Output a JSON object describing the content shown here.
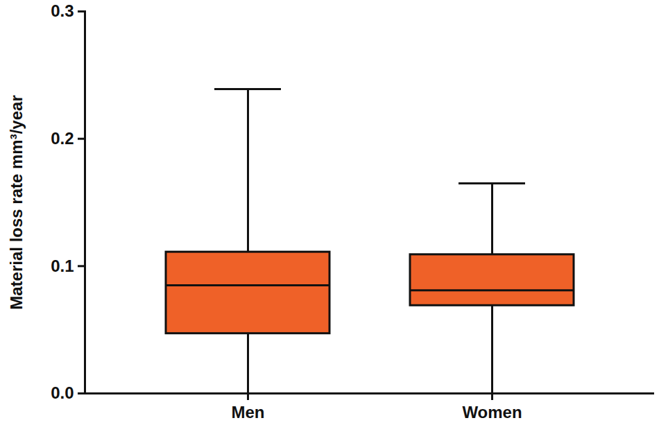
{
  "chart_data": {
    "type": "box",
    "ylabel": "Material loss rate mm³/year",
    "categories": [
      "Men",
      "Women"
    ],
    "min": [
      0.0,
      0.0
    ],
    "q1": [
      0.047,
      0.069
    ],
    "median": [
      0.085,
      0.081
    ],
    "q3": [
      0.111,
      0.109
    ],
    "max": [
      0.239,
      0.165
    ],
    "color": "#ef6128",
    "ylim": [
      0,
      0.3
    ],
    "yticks": [
      {
        "value": 0,
        "label": "0.0"
      },
      0.1,
      0.2,
      0.3
    ],
    "grid": false
  }
}
